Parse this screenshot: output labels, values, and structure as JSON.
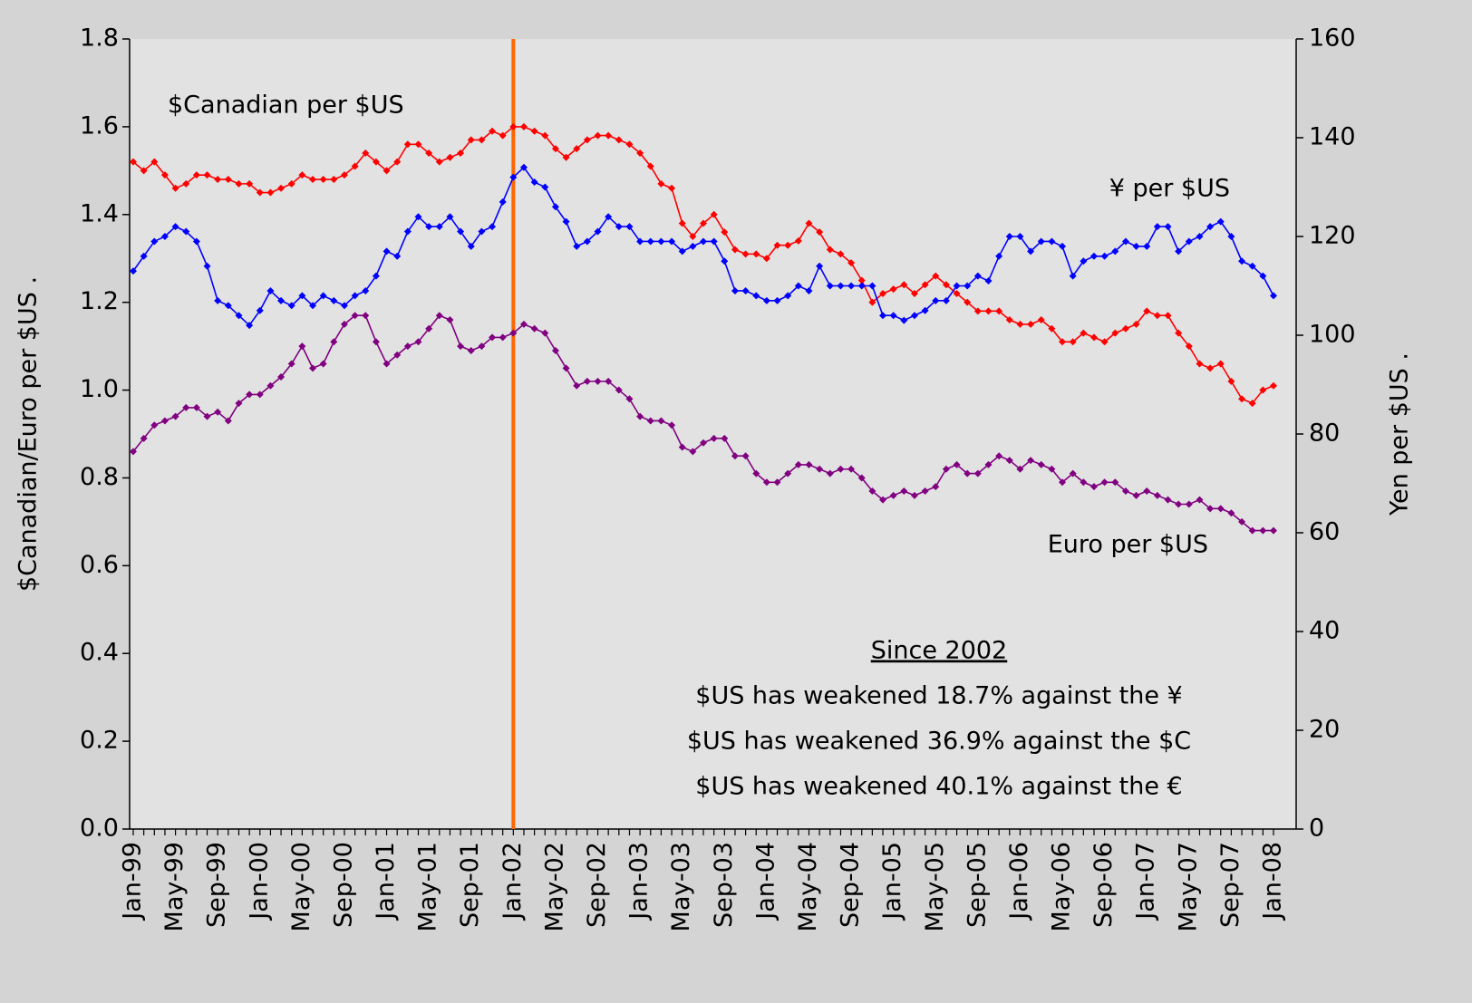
{
  "chart_data": {
    "type": "line",
    "y_label": "$Canadian/Euro per $US .",
    "y2_label": "Yen per $US .",
    "categories": [
      "Jan-99",
      null,
      null,
      null,
      "May-99",
      null,
      null,
      null,
      "Sep-99",
      null,
      null,
      null,
      "Jan-00",
      null,
      null,
      null,
      "May-00",
      null,
      null,
      null,
      "Sep-00",
      null,
      null,
      null,
      "Jan-01",
      null,
      null,
      null,
      "May-01",
      null,
      null,
      null,
      "Sep-01",
      null,
      null,
      null,
      "Jan-02",
      null,
      null,
      null,
      "May-02",
      null,
      null,
      null,
      "Sep-02",
      null,
      null,
      null,
      "Jan-03",
      null,
      null,
      null,
      "May-03",
      null,
      null,
      null,
      "Sep-03",
      null,
      null,
      null,
      "Jan-04",
      null,
      null,
      null,
      "May-04",
      null,
      null,
      null,
      "Sep-04",
      null,
      null,
      null,
      "Jan-05",
      null,
      null,
      null,
      "May-05",
      null,
      null,
      null,
      "Sep-05",
      null,
      null,
      null,
      "Jan-06",
      null,
      null,
      null,
      "May-06",
      null,
      null,
      null,
      "Sep-06",
      null,
      null,
      null,
      "Jan-07",
      null,
      null,
      null,
      "May-07",
      null,
      null,
      null,
      "Sep-07",
      null,
      null,
      null,
      "Jan-08"
    ],
    "series": [
      {
        "name": "$Canadian per $US",
        "color": "#ff0000",
        "values": [
          1.52,
          1.5,
          1.52,
          1.49,
          1.46,
          1.47,
          1.49,
          1.49,
          1.48,
          1.48,
          1.47,
          1.47,
          1.45,
          1.45,
          1.46,
          1.47,
          1.49,
          1.48,
          1.48,
          1.48,
          1.49,
          1.51,
          1.54,
          1.52,
          1.5,
          1.52,
          1.56,
          1.56,
          1.54,
          1.52,
          1.53,
          1.54,
          1.57,
          1.57,
          1.59,
          1.58,
          1.6,
          1.6,
          1.59,
          1.58,
          1.55,
          1.53,
          1.55,
          1.57,
          1.58,
          1.58,
          1.57,
          1.56,
          1.54,
          1.51,
          1.47,
          1.46,
          1.38,
          1.35,
          1.38,
          1.4,
          1.36,
          1.32,
          1.31,
          1.31,
          1.3,
          1.33,
          1.33,
          1.34,
          1.38,
          1.36,
          1.32,
          1.31,
          1.29,
          1.25,
          1.2,
          1.22,
          1.23,
          1.24,
          1.22,
          1.24,
          1.26,
          1.24,
          1.22,
          1.2,
          1.18,
          1.18,
          1.18,
          1.16,
          1.15,
          1.15,
          1.16,
          1.14,
          1.11,
          1.11,
          1.13,
          1.12,
          1.11,
          1.13,
          1.14,
          1.15,
          1.18,
          1.17,
          1.17,
          1.13,
          1.1,
          1.06,
          1.05,
          1.06,
          1.02,
          0.98,
          0.97,
          1.0,
          1.01
        ]
      },
      {
        "name": "¥ per $US",
        "color": "#0000ff",
        "axis": "y2",
        "values": [
          113,
          116,
          119,
          120,
          122,
          121,
          119,
          114,
          107,
          106,
          104,
          102,
          105,
          109,
          107,
          106,
          108,
          106,
          108,
          107,
          106,
          108,
          109,
          112,
          117,
          116,
          121,
          124,
          122,
          122,
          124,
          121,
          118,
          121,
          122,
          127,
          132,
          134,
          131,
          130,
          126,
          123,
          118,
          119,
          121,
          124,
          122,
          122,
          119,
          119,
          119,
          119,
          117,
          118,
          119,
          119,
          115,
          109,
          109,
          108,
          107,
          107,
          108,
          110,
          109,
          114,
          110,
          110,
          110,
          110,
          110,
          104,
          104,
          103,
          104,
          105,
          107,
          107,
          110,
          110,
          112,
          111,
          116,
          120,
          120,
          117,
          119,
          119,
          118,
          112,
          115,
          116,
          116,
          117,
          119,
          118,
          118,
          122,
          122,
          117,
          119,
          120,
          122,
          123,
          120,
          115,
          114,
          112,
          108
        ]
      },
      {
        "name": "Euro per $US",
        "color": "#800080",
        "values": [
          0.86,
          0.89,
          0.92,
          0.93,
          0.94,
          0.96,
          0.96,
          0.94,
          0.95,
          0.93,
          0.97,
          0.99,
          0.99,
          1.01,
          1.03,
          1.06,
          1.1,
          1.05,
          1.06,
          1.11,
          1.15,
          1.17,
          1.17,
          1.11,
          1.06,
          1.08,
          1.1,
          1.11,
          1.14,
          1.17,
          1.16,
          1.1,
          1.09,
          1.1,
          1.12,
          1.12,
          1.13,
          1.15,
          1.14,
          1.13,
          1.09,
          1.05,
          1.01,
          1.02,
          1.02,
          1.02,
          1.0,
          0.98,
          0.94,
          0.93,
          0.93,
          0.92,
          0.87,
          0.86,
          0.88,
          0.89,
          0.89,
          0.85,
          0.85,
          0.81,
          0.79,
          0.79,
          0.81,
          0.83,
          0.83,
          0.82,
          0.81,
          0.82,
          0.82,
          0.8,
          0.77,
          0.75,
          0.76,
          0.77,
          0.76,
          0.77,
          0.78,
          0.82,
          0.83,
          0.81,
          0.81,
          0.83,
          0.85,
          0.84,
          0.82,
          0.84,
          0.83,
          0.82,
          0.79,
          0.81,
          0.79,
          0.78,
          0.79,
          0.79,
          0.77,
          0.76,
          0.77,
          0.76,
          0.75,
          0.74,
          0.74,
          0.75,
          0.73,
          0.73,
          0.72,
          0.7,
          0.68,
          0.68,
          0.68
        ]
      }
    ],
    "ylim": [
      0,
      1.8
    ],
    "yticks": [
      {
        "value": 0,
        "label": "0.0"
      },
      0.2,
      0.4,
      0.6,
      0.8,
      {
        "value": 1,
        "label": "1.0"
      },
      1.2,
      1.4,
      1.6,
      1.8
    ],
    "y2lim": [
      0,
      160
    ],
    "y2ticks": [
      0,
      20,
      40,
      60,
      80,
      100,
      120,
      140,
      160
    ],
    "vline": {
      "x": "Jan-02",
      "color": "#ff6600"
    },
    "annotations": [
      "Since 2002",
      "$US has weakened 18.7% against the ¥",
      "$US has weakened 36.9% against the $C",
      "$US has weakened 40.1% against the €"
    ]
  }
}
